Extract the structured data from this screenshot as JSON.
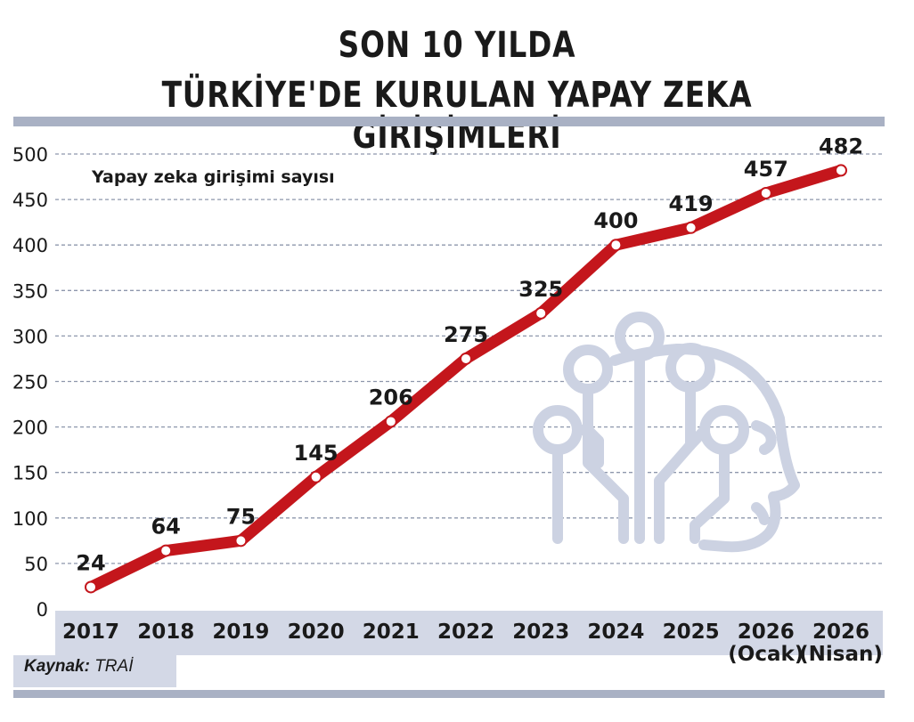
{
  "title": {
    "line1": "SON 10 YILDA",
    "line2": "TÜRKİYE'DE KURULAN YAPAY ZEKA GİRİŞİMLERİ"
  },
  "source": {
    "label": "Kaynak:",
    "value": "TRAİ"
  },
  "colors": {
    "line": "#c4161c",
    "axis_band": "#d3d8e6",
    "rule": "#a9b1c4",
    "grid": "#8e97ac",
    "icon": "#ccd2e2"
  },
  "decoration_icon": "ai-head-circuit-icon",
  "chart_data": {
    "type": "line",
    "legend_label": "Yapay zeka girişimi sayısı",
    "categories": [
      [
        "2017"
      ],
      [
        "2018"
      ],
      [
        "2019"
      ],
      [
        "2020"
      ],
      [
        "2021"
      ],
      [
        "2022"
      ],
      [
        "2023"
      ],
      [
        "2024"
      ],
      [
        "2025"
      ],
      [
        "2026",
        "(Ocak)"
      ],
      [
        "2026",
        "(Nisan)"
      ]
    ],
    "values": [
      24,
      64,
      75,
      145,
      206,
      275,
      325,
      400,
      419,
      457,
      482
    ],
    "y_ticks": [
      0,
      50,
      100,
      150,
      200,
      250,
      300,
      350,
      400,
      450,
      500
    ],
    "ylim": [
      0,
      500
    ],
    "grid": true
  }
}
